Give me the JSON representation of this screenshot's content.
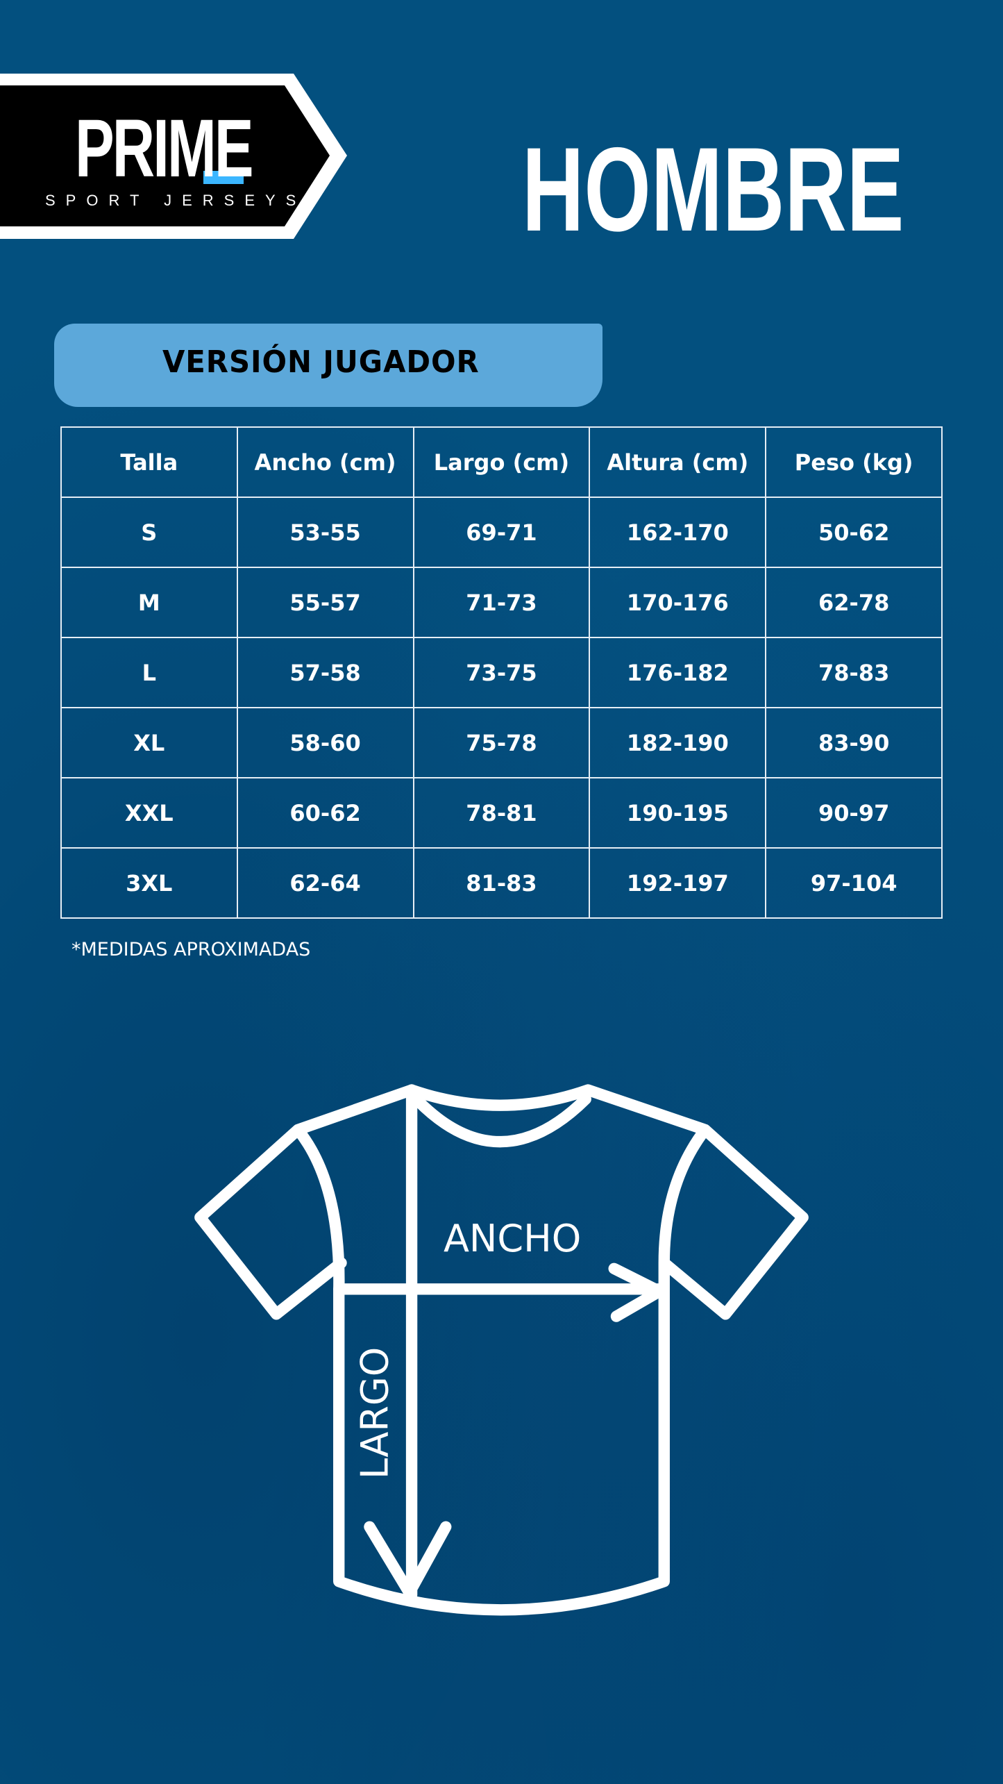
{
  "logo": {
    "word": "PRIME",
    "tagline": "SPORT JERSEYS",
    "accent": "#3bb6ff"
  },
  "title": "HOMBRE",
  "version_label": "VERSIÓN JUGADOR",
  "table": {
    "headers": [
      "Talla",
      "Ancho (cm)",
      "Largo (cm)",
      "Altura (cm)",
      "Peso (kg)"
    ],
    "rows": [
      [
        "S",
        "53-55",
        "69-71",
        "162-170",
        "50-62"
      ],
      [
        "M",
        "55-57",
        "71-73",
        "170-176",
        "62-78"
      ],
      [
        "L",
        "57-58",
        "73-75",
        "176-182",
        "78-83"
      ],
      [
        "XL",
        "58-60",
        "75-78",
        "182-190",
        "83-90"
      ],
      [
        "XXL",
        "60-62",
        "78-81",
        "190-195",
        "90-97"
      ],
      [
        "3XL",
        "62-64",
        "81-83",
        "192-197",
        "97-104"
      ]
    ]
  },
  "note": "*MEDIDAS APROXIMADAS",
  "diagram": {
    "width_label": "ANCHO",
    "length_label": "LARGO"
  },
  "colors": {
    "background": "#03507f",
    "badge": "#5ca8da"
  }
}
